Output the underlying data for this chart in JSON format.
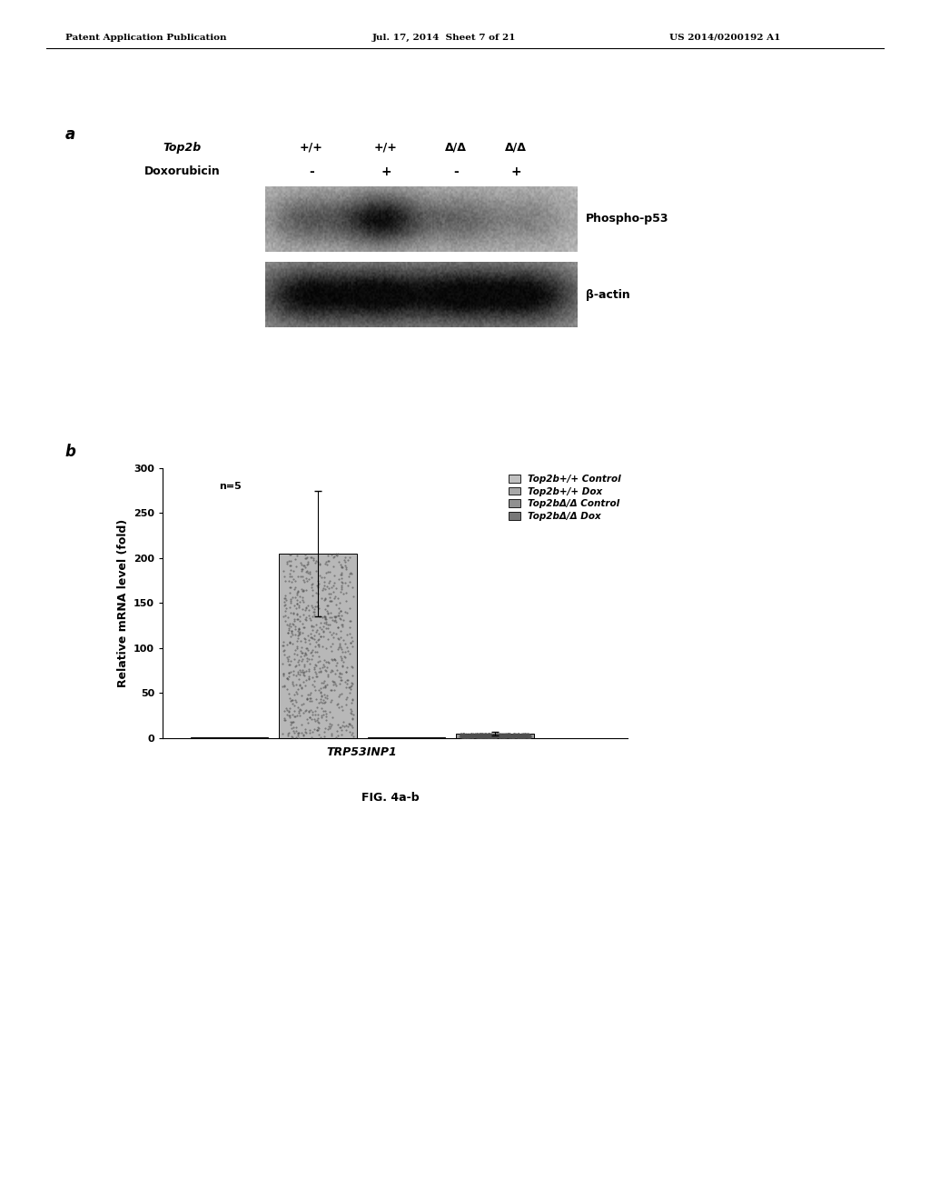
{
  "header_left": "Patent Application Publication",
  "header_mid": "Jul. 17, 2014  Sheet 7 of 21",
  "header_right": "US 2014/0200192 A1",
  "panel_a_label": "a",
  "panel_b_label": "b",
  "top2b_label": "Top2b",
  "top2b_genotypes": [
    "+/+",
    "+/+",
    "Δ/Δ",
    "Δ/Δ"
  ],
  "doxorubicin_label": "Doxorubicin",
  "doxorubicin_values": [
    "-",
    "+",
    "-",
    "+"
  ],
  "phospho_p53_label": "Phospho-p53",
  "beta_actin_label": "β-actin",
  "fig_caption": "FIG. 4a-b",
  "bar_values": [
    1.0,
    205.0,
    0.5,
    5.0
  ],
  "bar_error": [
    0.0,
    70.0,
    0.0,
    2.0
  ],
  "xlabel": "TRP53INP1",
  "ylabel": "Relative mRNA level (fold)",
  "ylim": [
    0,
    300
  ],
  "yticks": [
    0,
    50,
    100,
    150,
    200,
    250,
    300
  ],
  "n_label": "n=5",
  "legend_labels": [
    "Top2b+/+ Control",
    "Top2b+/+ Dox",
    "Top2bΔ/Δ Control",
    "Top2bΔ/Δ Dox"
  ],
  "background_color": "#ffffff"
}
